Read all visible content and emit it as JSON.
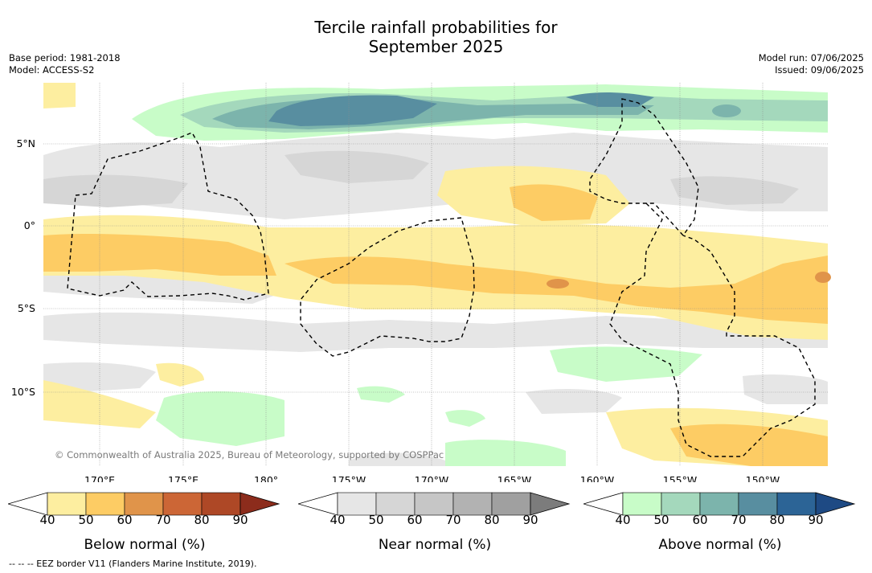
{
  "title_line1": "Tercile rainfall probabilities for",
  "title_line2": "September 2025",
  "base_period": "Base period: 1981-2018",
  "model": "Model: ACCESS-S2",
  "model_run": "Model run: 07/06/2025",
  "issued": "Issued: 09/06/2025",
  "lat_labels": [
    "5°N",
    "0°",
    "5°S",
    "10°S"
  ],
  "lon_labels": [
    "170°E",
    "175°E",
    "180°",
    "175°W",
    "170°W",
    "165°W",
    "160°W",
    "155°W",
    "150°W"
  ],
  "copyright": "© Commonwealth of Australia 2025, Bureau of Meteorology, supported by COSPPac",
  "colorbars": [
    {
      "title": "Below normal (%)",
      "ticks": [
        "40",
        "50",
        "60",
        "70",
        "80",
        "90"
      ],
      "colors": [
        "#ffffff",
        "#fdeea0",
        "#fdcc64",
        "#e0944a",
        "#cc6636",
        "#ae4826",
        "#8c2c1c"
      ]
    },
    {
      "title": "Near normal (%)",
      "ticks": [
        "40",
        "50",
        "60",
        "70",
        "80",
        "90"
      ],
      "colors": [
        "#ffffff",
        "#e6e6e6",
        "#d6d6d6",
        "#c6c6c6",
        "#b2b2b2",
        "#a0a0a0",
        "#7c7c7c"
      ]
    },
    {
      "title": "Above normal (%)",
      "ticks": [
        "40",
        "50",
        "60",
        "70",
        "80",
        "90"
      ],
      "colors": [
        "#ffffff",
        "#c8fcc8",
        "#a4d8bc",
        "#7cb4ac",
        "#588ea0",
        "#2c6496",
        "#1e4a84"
      ]
    }
  ],
  "footnote": "-- -- -- EEZ border V11 (Flanders Marine Institute, 2019)."
}
